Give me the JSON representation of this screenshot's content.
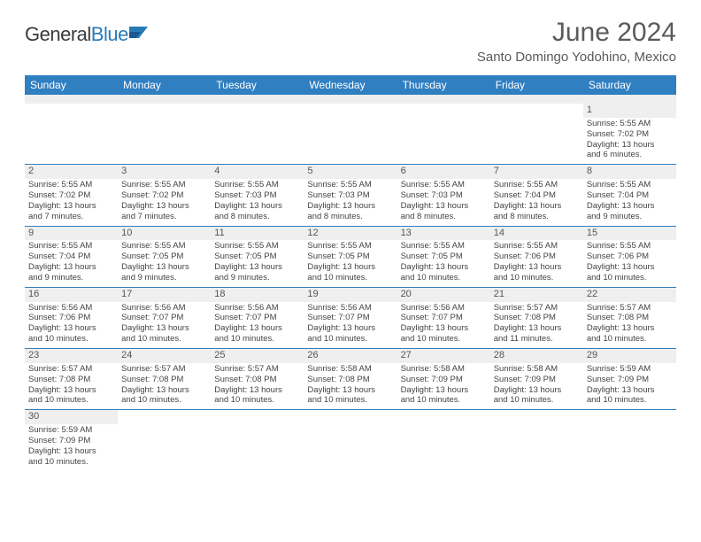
{
  "logo": {
    "general": "General",
    "blue": "Blue"
  },
  "title": "June 2024",
  "location": "Santo Domingo Yodohino, Mexico",
  "colors": {
    "header_bg": "#2f7fc1",
    "header_text": "#ffffff",
    "daynum_bg": "#efefef",
    "rule": "#2f7fc1",
    "text": "#444444",
    "title_text": "#5a5a5a"
  },
  "weekdays": [
    "Sunday",
    "Monday",
    "Tuesday",
    "Wednesday",
    "Thursday",
    "Friday",
    "Saturday"
  ],
  "weeks": [
    [
      null,
      null,
      null,
      null,
      null,
      null,
      {
        "n": "1",
        "sunrise": "Sunrise: 5:55 AM",
        "sunset": "Sunset: 7:02 PM",
        "day1": "Daylight: 13 hours",
        "day2": "and 6 minutes."
      }
    ],
    [
      {
        "n": "2",
        "sunrise": "Sunrise: 5:55 AM",
        "sunset": "Sunset: 7:02 PM",
        "day1": "Daylight: 13 hours",
        "day2": "and 7 minutes."
      },
      {
        "n": "3",
        "sunrise": "Sunrise: 5:55 AM",
        "sunset": "Sunset: 7:02 PM",
        "day1": "Daylight: 13 hours",
        "day2": "and 7 minutes."
      },
      {
        "n": "4",
        "sunrise": "Sunrise: 5:55 AM",
        "sunset": "Sunset: 7:03 PM",
        "day1": "Daylight: 13 hours",
        "day2": "and 8 minutes."
      },
      {
        "n": "5",
        "sunrise": "Sunrise: 5:55 AM",
        "sunset": "Sunset: 7:03 PM",
        "day1": "Daylight: 13 hours",
        "day2": "and 8 minutes."
      },
      {
        "n": "6",
        "sunrise": "Sunrise: 5:55 AM",
        "sunset": "Sunset: 7:03 PM",
        "day1": "Daylight: 13 hours",
        "day2": "and 8 minutes."
      },
      {
        "n": "7",
        "sunrise": "Sunrise: 5:55 AM",
        "sunset": "Sunset: 7:04 PM",
        "day1": "Daylight: 13 hours",
        "day2": "and 8 minutes."
      },
      {
        "n": "8",
        "sunrise": "Sunrise: 5:55 AM",
        "sunset": "Sunset: 7:04 PM",
        "day1": "Daylight: 13 hours",
        "day2": "and 9 minutes."
      }
    ],
    [
      {
        "n": "9",
        "sunrise": "Sunrise: 5:55 AM",
        "sunset": "Sunset: 7:04 PM",
        "day1": "Daylight: 13 hours",
        "day2": "and 9 minutes."
      },
      {
        "n": "10",
        "sunrise": "Sunrise: 5:55 AM",
        "sunset": "Sunset: 7:05 PM",
        "day1": "Daylight: 13 hours",
        "day2": "and 9 minutes."
      },
      {
        "n": "11",
        "sunrise": "Sunrise: 5:55 AM",
        "sunset": "Sunset: 7:05 PM",
        "day1": "Daylight: 13 hours",
        "day2": "and 9 minutes."
      },
      {
        "n": "12",
        "sunrise": "Sunrise: 5:55 AM",
        "sunset": "Sunset: 7:05 PM",
        "day1": "Daylight: 13 hours",
        "day2": "and 10 minutes."
      },
      {
        "n": "13",
        "sunrise": "Sunrise: 5:55 AM",
        "sunset": "Sunset: 7:05 PM",
        "day1": "Daylight: 13 hours",
        "day2": "and 10 minutes."
      },
      {
        "n": "14",
        "sunrise": "Sunrise: 5:55 AM",
        "sunset": "Sunset: 7:06 PM",
        "day1": "Daylight: 13 hours",
        "day2": "and 10 minutes."
      },
      {
        "n": "15",
        "sunrise": "Sunrise: 5:55 AM",
        "sunset": "Sunset: 7:06 PM",
        "day1": "Daylight: 13 hours",
        "day2": "and 10 minutes."
      }
    ],
    [
      {
        "n": "16",
        "sunrise": "Sunrise: 5:56 AM",
        "sunset": "Sunset: 7:06 PM",
        "day1": "Daylight: 13 hours",
        "day2": "and 10 minutes."
      },
      {
        "n": "17",
        "sunrise": "Sunrise: 5:56 AM",
        "sunset": "Sunset: 7:07 PM",
        "day1": "Daylight: 13 hours",
        "day2": "and 10 minutes."
      },
      {
        "n": "18",
        "sunrise": "Sunrise: 5:56 AM",
        "sunset": "Sunset: 7:07 PM",
        "day1": "Daylight: 13 hours",
        "day2": "and 10 minutes."
      },
      {
        "n": "19",
        "sunrise": "Sunrise: 5:56 AM",
        "sunset": "Sunset: 7:07 PM",
        "day1": "Daylight: 13 hours",
        "day2": "and 10 minutes."
      },
      {
        "n": "20",
        "sunrise": "Sunrise: 5:56 AM",
        "sunset": "Sunset: 7:07 PM",
        "day1": "Daylight: 13 hours",
        "day2": "and 10 minutes."
      },
      {
        "n": "21",
        "sunrise": "Sunrise: 5:57 AM",
        "sunset": "Sunset: 7:08 PM",
        "day1": "Daylight: 13 hours",
        "day2": "and 11 minutes."
      },
      {
        "n": "22",
        "sunrise": "Sunrise: 5:57 AM",
        "sunset": "Sunset: 7:08 PM",
        "day1": "Daylight: 13 hours",
        "day2": "and 10 minutes."
      }
    ],
    [
      {
        "n": "23",
        "sunrise": "Sunrise: 5:57 AM",
        "sunset": "Sunset: 7:08 PM",
        "day1": "Daylight: 13 hours",
        "day2": "and 10 minutes."
      },
      {
        "n": "24",
        "sunrise": "Sunrise: 5:57 AM",
        "sunset": "Sunset: 7:08 PM",
        "day1": "Daylight: 13 hours",
        "day2": "and 10 minutes."
      },
      {
        "n": "25",
        "sunrise": "Sunrise: 5:57 AM",
        "sunset": "Sunset: 7:08 PM",
        "day1": "Daylight: 13 hours",
        "day2": "and 10 minutes."
      },
      {
        "n": "26",
        "sunrise": "Sunrise: 5:58 AM",
        "sunset": "Sunset: 7:08 PM",
        "day1": "Daylight: 13 hours",
        "day2": "and 10 minutes."
      },
      {
        "n": "27",
        "sunrise": "Sunrise: 5:58 AM",
        "sunset": "Sunset: 7:09 PM",
        "day1": "Daylight: 13 hours",
        "day2": "and 10 minutes."
      },
      {
        "n": "28",
        "sunrise": "Sunrise: 5:58 AM",
        "sunset": "Sunset: 7:09 PM",
        "day1": "Daylight: 13 hours",
        "day2": "and 10 minutes."
      },
      {
        "n": "29",
        "sunrise": "Sunrise: 5:59 AM",
        "sunset": "Sunset: 7:09 PM",
        "day1": "Daylight: 13 hours",
        "day2": "and 10 minutes."
      }
    ],
    [
      {
        "n": "30",
        "sunrise": "Sunrise: 5:59 AM",
        "sunset": "Sunset: 7:09 PM",
        "day1": "Daylight: 13 hours",
        "day2": "and 10 minutes."
      },
      null,
      null,
      null,
      null,
      null,
      null
    ]
  ]
}
